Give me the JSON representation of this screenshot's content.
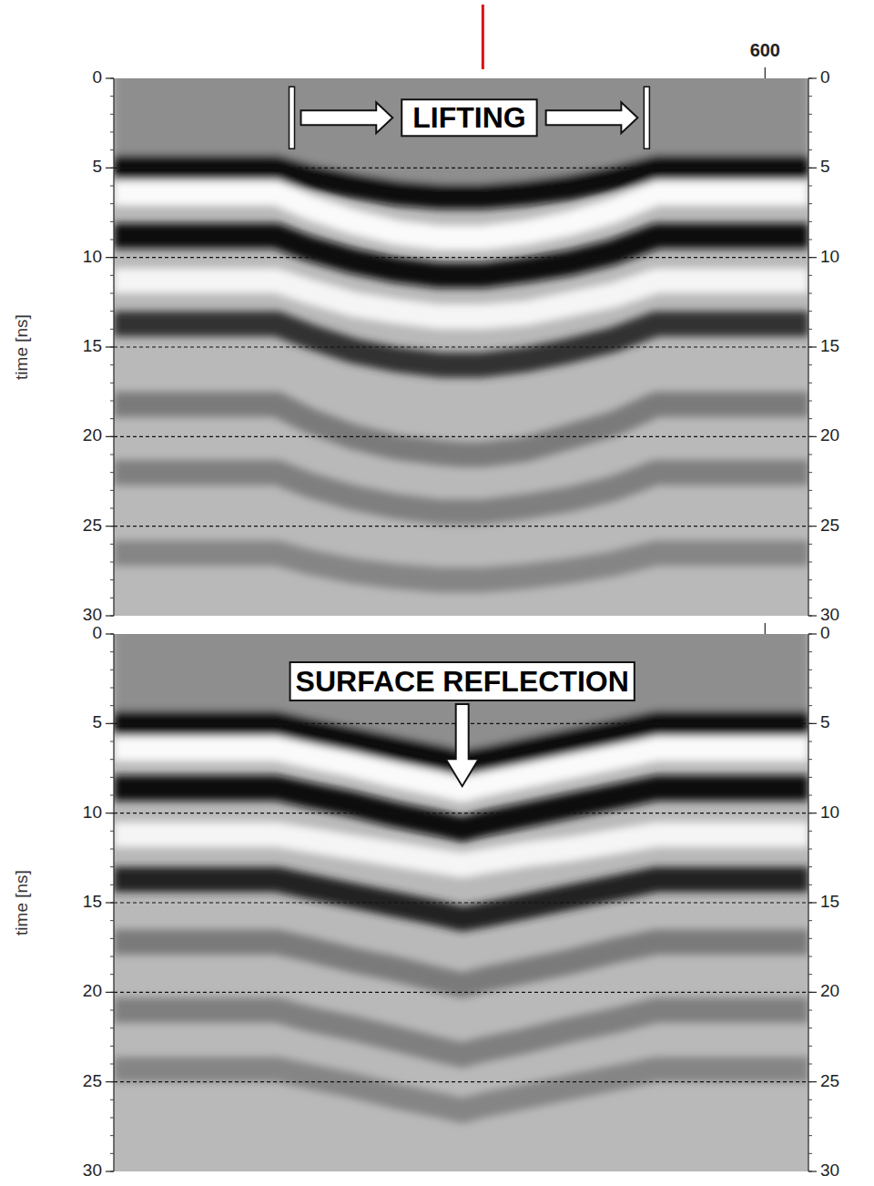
{
  "chart_data": [
    {
      "type": "radargram",
      "y_label": "time [ns]",
      "xlim": [
        0,
        640
      ],
      "xticks": [
        600
      ],
      "ylim": [
        0,
        30
      ],
      "yticks": [
        0,
        5,
        10,
        15,
        20,
        25,
        30
      ],
      "grid": true,
      "cursor_x": 340,
      "x": [
        0,
        150,
        180,
        220,
        260,
        300,
        321,
        340,
        380,
        420,
        460,
        500,
        640
      ],
      "series": [
        {
          "color": "#0a0a0a",
          "values": [
            5.0,
            5.0,
            5.5,
            6.0,
            6.4,
            6.6,
            6.6,
            6.6,
            6.4,
            6.1,
            5.6,
            5.0,
            5.0
          ]
        },
        {
          "color": "#fafafa",
          "values": [
            6.4,
            6.4,
            7.2,
            8.0,
            8.6,
            8.9,
            8.9,
            8.9,
            8.6,
            8.1,
            7.4,
            6.4,
            6.4
          ]
        },
        {
          "color": "#111111",
          "values": [
            8.8,
            8.8,
            9.5,
            10.2,
            10.7,
            11.0,
            11.0,
            11.0,
            10.7,
            10.3,
            9.7,
            8.8,
            8.8
          ]
        },
        {
          "color": "#f5f5f5",
          "values": [
            11.3,
            11.3,
            11.9,
            12.6,
            13.0,
            13.3,
            13.3,
            13.3,
            13.1,
            12.6,
            12.1,
            11.3,
            11.3
          ]
        },
        {
          "color": "#333333",
          "values": [
            13.7,
            13.7,
            14.4,
            15.2,
            15.7,
            16.0,
            16.0,
            16.0,
            15.7,
            15.2,
            14.6,
            13.7,
            13.7
          ]
        },
        {
          "color": "#7a7a7a",
          "values": [
            18.2,
            18.2,
            19.1,
            20.0,
            20.6,
            20.9,
            21.0,
            21.0,
            20.7,
            20.0,
            19.3,
            18.2,
            18.2
          ]
        },
        {
          "color": "#7f7f7f",
          "values": [
            22.0,
            22.0,
            22.7,
            23.4,
            23.9,
            24.2,
            24.2,
            24.2,
            23.9,
            23.5,
            22.9,
            22.0,
            22.0
          ]
        },
        {
          "color": "#858585",
          "values": [
            26.5,
            26.5,
            27.0,
            27.5,
            27.8,
            28.0,
            28.0,
            28.0,
            27.8,
            27.5,
            27.1,
            26.5,
            26.5
          ]
        }
      ],
      "annotations": [
        {
          "text": "LIFTING",
          "x": [
            164,
            491
          ],
          "y": 2.2
        }
      ]
    },
    {
      "type": "radargram",
      "y_label": "time [ns]",
      "xlim": [
        0,
        640
      ],
      "xticks": [
        600
      ],
      "ylim": [
        0,
        30
      ],
      "yticks": [
        0,
        5,
        10,
        15,
        20,
        25,
        30
      ],
      "grid": true,
      "tick_labels": "y",
      "x": [
        0,
        150,
        180,
        220,
        260,
        300,
        321,
        340,
        380,
        420,
        460,
        500,
        640
      ],
      "series": [
        {
          "color": "#0a0a0a",
          "values": [
            5.0,
            5.0,
            5.4,
            5.9,
            6.4,
            6.9,
            7.2,
            7.0,
            6.5,
            6.0,
            5.5,
            5.0,
            5.0
          ]
        },
        {
          "color": "#fafafa",
          "values": [
            6.4,
            6.4,
            6.8,
            7.3,
            7.9,
            8.4,
            8.7,
            8.4,
            7.9,
            7.4,
            6.9,
            6.4,
            6.4
          ]
        },
        {
          "color": "#111111",
          "values": [
            8.6,
            8.6,
            9.0,
            9.5,
            10.1,
            10.6,
            10.9,
            10.6,
            10.1,
            9.6,
            9.1,
            8.6,
            8.6
          ]
        },
        {
          "color": "#f5f5f5",
          "values": [
            11.2,
            11.2,
            11.5,
            11.9,
            12.3,
            12.7,
            12.9,
            12.7,
            12.3,
            12.0,
            11.6,
            11.2,
            11.2
          ]
        },
        {
          "color": "#222222",
          "values": [
            13.7,
            13.7,
            14.1,
            14.6,
            15.1,
            15.6,
            15.9,
            15.7,
            15.2,
            14.7,
            14.2,
            13.7,
            13.7
          ]
        },
        {
          "color": "#7a7a7a",
          "values": [
            17.2,
            17.2,
            17.6,
            18.2,
            18.7,
            19.3,
            19.6,
            19.3,
            18.8,
            18.3,
            17.7,
            17.2,
            17.2
          ]
        },
        {
          "color": "#7f7f7f",
          "values": [
            21.0,
            21.0,
            21.5,
            22.0,
            22.6,
            23.2,
            23.5,
            23.2,
            22.7,
            22.1,
            21.6,
            21.0,
            21.0
          ]
        },
        {
          "color": "#858585",
          "values": [
            24.3,
            24.3,
            24.7,
            25.2,
            25.8,
            26.3,
            26.6,
            26.3,
            25.8,
            25.3,
            24.8,
            24.3,
            24.3
          ]
        }
      ],
      "annotations": [
        {
          "text": "SURFACE REFLECTION",
          "x": 321,
          "y": 8.5
        }
      ]
    }
  ]
}
